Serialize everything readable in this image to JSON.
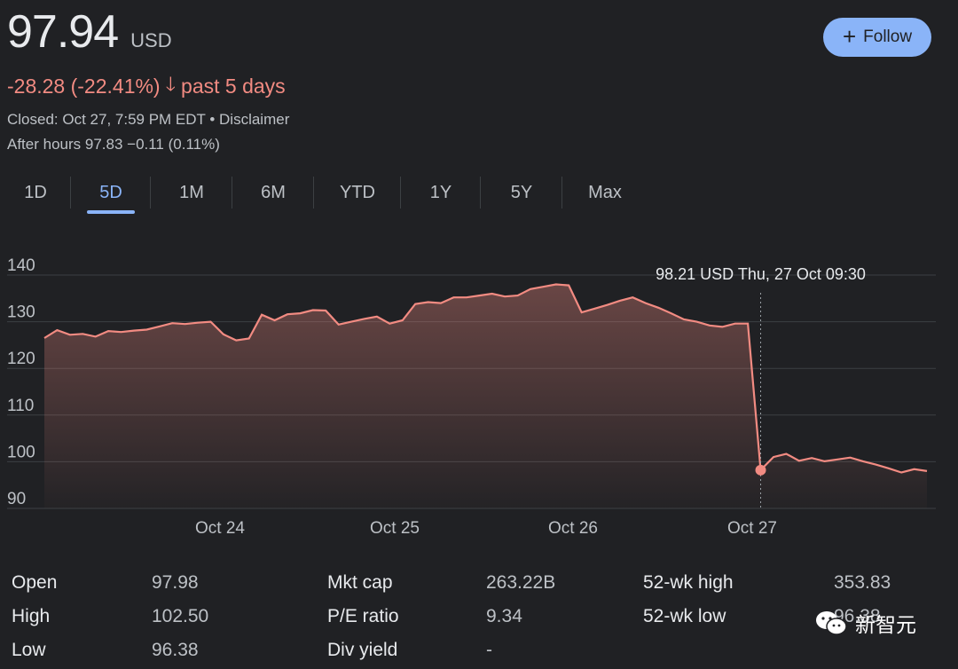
{
  "quote": {
    "price": "97.94",
    "currency": "USD",
    "change_text": "-28.28 (-22.41%)",
    "change_period": "past 5 days",
    "closed_text": "Closed: Oct 27, 7:59 PM EDT • Disclaimer",
    "after_hours_text": "After hours 97.83 −0.11 (0.11%)"
  },
  "follow_button": {
    "label": "Follow",
    "icon": "plus-icon"
  },
  "tabs": [
    "1D",
    "5D",
    "1M",
    "6M",
    "YTD",
    "1Y",
    "5Y",
    "Max"
  ],
  "active_tab": "5D",
  "tooltip": "98.21 USD  Thu, 27 Oct 09:30",
  "colors": {
    "line": "#f28b82",
    "accent": "#8ab4f8",
    "background": "#202124"
  },
  "chart_data": {
    "type": "area",
    "ylim": [
      90,
      140
    ],
    "yticks": [
      "140",
      "130",
      "120",
      "110",
      "100",
      "90"
    ],
    "x_labels": [
      "Oct 24",
      "Oct 25",
      "Oct 26",
      "Oct 27"
    ],
    "series": [
      {
        "values": [
          126.5,
          128.2,
          127.2,
          127.4,
          126.8,
          128.0,
          127.8,
          128.1,
          128.3,
          129.0,
          129.7,
          129.5,
          129.8,
          130.0,
          127.3,
          126.0,
          126.4,
          131.5,
          130.3,
          131.6,
          131.8,
          132.5,
          132.4,
          129.4,
          130.0,
          130.6,
          131.1,
          129.6,
          130.3,
          133.8,
          134.2,
          134.0,
          135.2,
          135.2,
          135.6,
          136.0,
          135.4,
          135.6,
          137.0,
          137.5,
          138.0,
          137.8,
          132.0,
          132.8,
          133.6,
          134.5,
          135.2,
          134.0,
          133.0,
          131.8,
          130.5,
          130.0,
          129.2,
          128.9,
          129.6,
          129.6,
          98.21,
          101.0,
          101.7,
          100.2,
          100.8,
          100.1,
          100.5,
          100.9,
          100.1,
          99.4,
          98.6,
          97.7,
          98.4,
          98.0
        ]
      }
    ],
    "marker_index": 56
  },
  "stats": {
    "col1": [
      {
        "label": "Open",
        "value": "97.98"
      },
      {
        "label": "High",
        "value": "102.50"
      },
      {
        "label": "Low",
        "value": "96.38"
      }
    ],
    "col2": [
      {
        "label": "Mkt cap",
        "value": "263.22B"
      },
      {
        "label": "P/E ratio",
        "value": "9.34"
      },
      {
        "label": "Div yield",
        "value": "-"
      }
    ],
    "col3": [
      {
        "label": "52-wk high",
        "value": "353.83"
      },
      {
        "label": "52-wk low",
        "value": "96.38"
      }
    ]
  },
  "watermark": "新智元"
}
